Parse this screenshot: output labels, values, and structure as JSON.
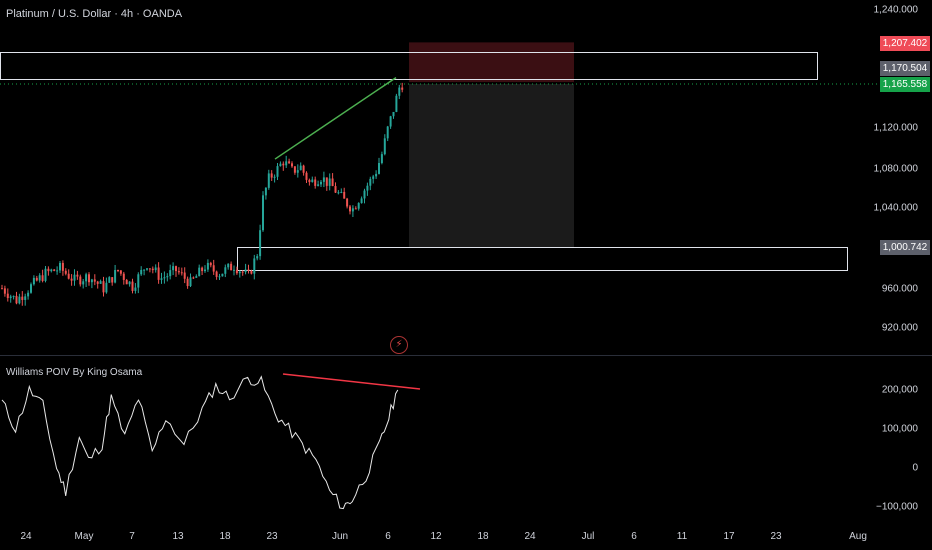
{
  "header": {
    "title": "Platinum / U.S. Dollar · 4h · OANDA"
  },
  "indicator": {
    "title": "Williams POIV By King Osama"
  },
  "colors": {
    "up": "#26a69a",
    "down": "#ef5350",
    "trendline_up": "#4caf50",
    "trendline_down": "#f23645",
    "stop_zone": "#3b0f13",
    "target_zone": "#1b1b1b",
    "price_green": "#16a34a",
    "price_red": "#ef4b57",
    "level_gray": "#5d606b"
  },
  "icons": {
    "replay": "lightning-icon"
  },
  "price_axis": {
    "ticks": [
      "1,240.000",
      "1,120.000",
      "1,080.000",
      "1,040.000",
      "960.000",
      "920.000"
    ],
    "labels": [
      {
        "text": "1,207.402",
        "kind": "stop"
      },
      {
        "text": "1,170.504",
        "kind": "level"
      },
      {
        "text": "1,165.558",
        "kind": "last"
      },
      {
        "text": "1,000.742",
        "kind": "level"
      }
    ]
  },
  "indicator_axis": {
    "ticks": [
      "200,000",
      "100,000",
      "0",
      "−100,000"
    ]
  },
  "time_axis": {
    "ticks": [
      "24",
      "May",
      "7",
      "13",
      "18",
      "23",
      "Jun",
      "6",
      "12",
      "18",
      "24",
      "Jul",
      "6",
      "11",
      "17",
      "23",
      "Aug"
    ]
  },
  "chart_data": {
    "type": "candlestick",
    "symbol": "Platinum / U.S. Dollar",
    "interval": "4h",
    "source": "OANDA",
    "y_ticks": [
      920,
      960,
      1040,
      1080,
      1120,
      1240
    ],
    "key_levels": [
      1207.402,
      1170.504,
      1165.558,
      1000.742
    ],
    "price_path": [
      [
        0,
        960
      ],
      [
        5,
        948
      ],
      [
        10,
        962
      ],
      [
        15,
        975
      ],
      [
        20,
        980
      ],
      [
        25,
        968
      ],
      [
        30,
        972
      ],
      [
        35,
        960
      ],
      [
        40,
        978
      ],
      [
        45,
        962
      ],
      [
        50,
        985
      ],
      [
        55,
        970
      ],
      [
        60,
        978
      ],
      [
        65,
        965
      ],
      [
        70,
        982
      ],
      [
        75,
        975
      ],
      [
        80,
        983
      ],
      [
        85,
        972
      ],
      [
        88,
        995
      ],
      [
        90,
        1050
      ],
      [
        92,
        1070
      ],
      [
        95,
        1080
      ],
      [
        97,
        1088
      ],
      [
        100,
        1078
      ],
      [
        103,
        1082
      ],
      [
        106,
        1066
      ],
      [
        110,
        1072
      ],
      [
        114,
        1062
      ],
      [
        118,
        1048
      ],
      [
        121,
        1040
      ],
      [
        124,
        1055
      ],
      [
        127,
        1068
      ],
      [
        129,
        1078
      ],
      [
        131,
        1095
      ],
      [
        133,
        1120
      ],
      [
        135,
        1140
      ],
      [
        137,
        1162
      ],
      [
        138,
        1165.558
      ]
    ],
    "indicator": {
      "name": "Williams POIV By King Osama",
      "y_ticks": [
        -100000,
        0,
        100000,
        200000
      ],
      "path": [
        [
          0,
          170000
        ],
        [
          3,
          100000
        ],
        [
          6,
          200000
        ],
        [
          9,
          160000
        ],
        [
          12,
          0
        ],
        [
          14,
          -60000
        ],
        [
          17,
          80000
        ],
        [
          19,
          20000
        ],
        [
          22,
          60000
        ],
        [
          24,
          180000
        ],
        [
          27,
          80000
        ],
        [
          30,
          180000
        ],
        [
          33,
          40000
        ],
        [
          36,
          130000
        ],
        [
          40,
          60000
        ],
        [
          44,
          150000
        ],
        [
          47,
          210000
        ],
        [
          50,
          180000
        ],
        [
          54,
          230000
        ],
        [
          57,
          220000
        ],
        [
          60,
          140000
        ],
        [
          63,
          100000
        ],
        [
          66,
          60000
        ],
        [
          69,
          20000
        ],
        [
          72,
          -60000
        ],
        [
          75,
          -100000
        ],
        [
          77,
          -80000
        ],
        [
          80,
          -20000
        ],
        [
          83,
          60000
        ],
        [
          85,
          130000
        ],
        [
          87,
          200000
        ]
      ]
    }
  }
}
